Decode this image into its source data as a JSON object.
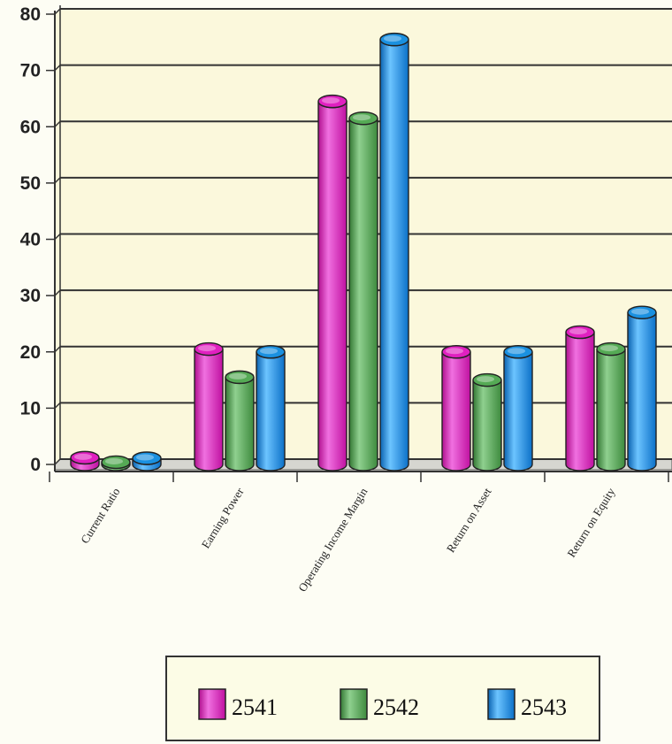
{
  "chart_data": {
    "type": "bar",
    "title": "",
    "xlabel": "",
    "ylabel": "",
    "ylim": [
      0,
      80
    ],
    "yticks": [
      0,
      10,
      20,
      30,
      40,
      50,
      60,
      70,
      80
    ],
    "grid": true,
    "legend_position": "bottom",
    "categories": [
      "Current Ratio",
      "Earning Power",
      "Operating Income Margin",
      "Return on Asset",
      "Return on Equity"
    ],
    "series": [
      {
        "name": "2541",
        "color": "#e020c0",
        "values": [
          1.2,
          20.5,
          64.5,
          20.0,
          23.5
        ]
      },
      {
        "name": "2542",
        "color": "#55aa55",
        "values": [
          0.4,
          15.5,
          61.5,
          15.0,
          20.5
        ]
      },
      {
        "name": "2543",
        "color": "#1a90e0",
        "values": [
          1.1,
          20.0,
          75.5,
          20.0,
          27.0
        ]
      }
    ]
  }
}
